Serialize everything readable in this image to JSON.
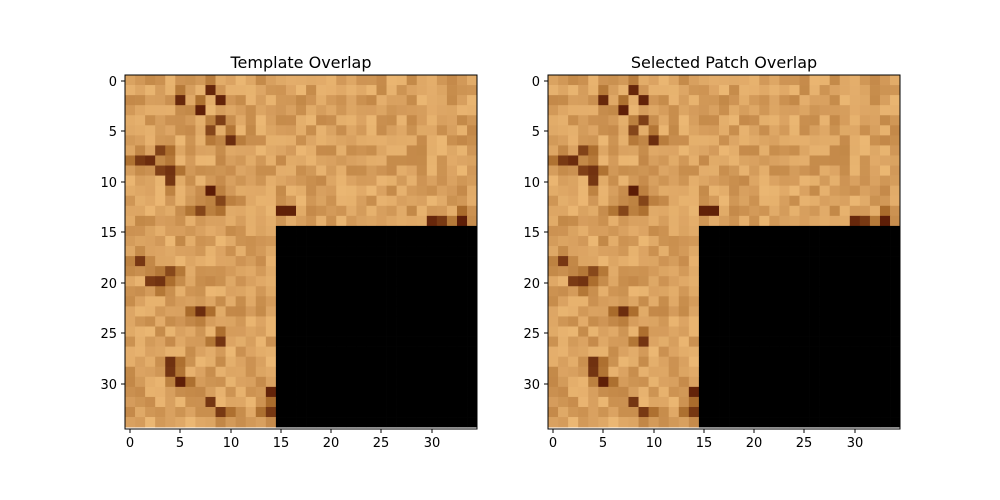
{
  "figure": {
    "panels": [
      {
        "title": "Template Overlap",
        "x_ticks": [
          "0",
          "5",
          "10",
          "15",
          "20",
          "25",
          "30"
        ],
        "y_ticks": [
          "0",
          "5",
          "10",
          "15",
          "20",
          "25",
          "30"
        ]
      },
      {
        "title": "Selected Patch Overlap",
        "x_ticks": [
          "0",
          "5",
          "10",
          "15",
          "20",
          "25",
          "30"
        ],
        "y_ticks": [
          "0",
          "5",
          "10",
          "15",
          "20",
          "25",
          "30"
        ]
      }
    ]
  },
  "colors": {
    "texture_base": "#d9a160",
    "texture_light": "#f0bd78",
    "texture_dark": "#a86a2a",
    "texture_darkest": "#5a1a05",
    "mask": "#000000",
    "axis": "#000000"
  },
  "image_content": {
    "size": [
      35,
      35
    ],
    "masked_region": {
      "rows": [
        15,
        34
      ],
      "cols": [
        15,
        34
      ]
    },
    "description_values": "sandy brown noisy texture with dark brown clusters"
  }
}
